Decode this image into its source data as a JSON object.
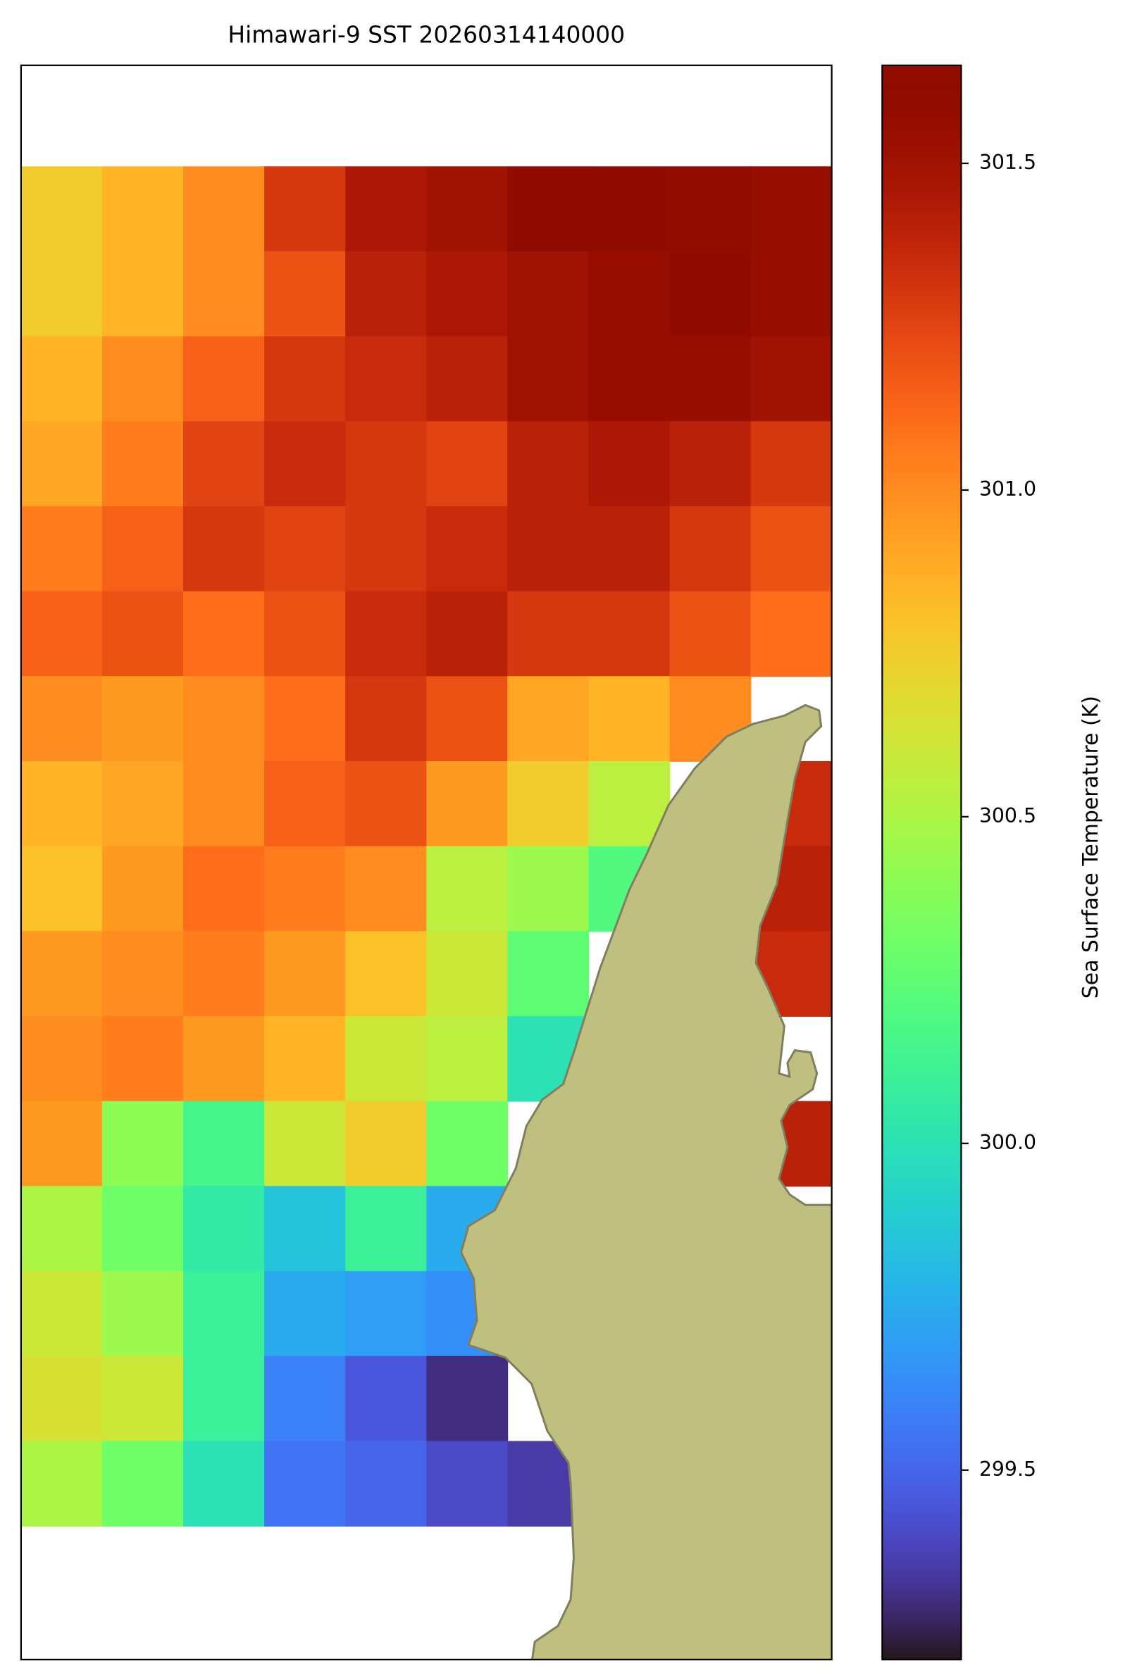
{
  "chart_data": {
    "type": "heatmap",
    "title": "Himawari-9 SST 20260314140000",
    "colorbar_label": "Sea Surface Temperature (K)",
    "colormap": "turbo",
    "clim": [
      299.21,
      301.65
    ],
    "cticks": [
      299.5,
      {
        "value": 300.0,
        "label": "300.0"
      },
      300.5,
      {
        "value": 301.0,
        "label": "301.0"
      },
      301.5
    ],
    "values": [
      [
        300.75,
        300.85,
        301.0,
        301.3,
        301.45,
        301.5,
        301.6,
        301.62,
        301.58,
        301.55
      ],
      [
        300.75,
        300.85,
        301.0,
        301.2,
        301.4,
        301.45,
        301.5,
        301.55,
        301.6,
        301.55
      ],
      [
        300.85,
        301.0,
        301.15,
        301.3,
        301.35,
        301.4,
        301.5,
        301.55,
        301.55,
        301.5
      ],
      [
        300.9,
        301.05,
        301.25,
        301.35,
        301.3,
        301.25,
        301.4,
        301.45,
        301.4,
        301.3
      ],
      [
        301.05,
        301.15,
        301.3,
        301.25,
        301.3,
        301.35,
        301.4,
        301.4,
        301.3,
        301.2
      ],
      [
        301.15,
        301.2,
        301.1,
        301.2,
        301.35,
        301.4,
        301.3,
        301.3,
        301.2,
        301.1
      ],
      [
        301.0,
        300.95,
        301.0,
        301.1,
        301.3,
        301.2,
        300.9,
        300.85,
        301.0,
        null
      ],
      [
        300.85,
        300.9,
        301.0,
        301.15,
        301.2,
        300.95,
        300.75,
        300.55,
        null,
        301.35
      ],
      [
        300.8,
        300.95,
        301.1,
        301.05,
        301.0,
        300.55,
        300.45,
        300.2,
        null,
        301.4
      ],
      [
        300.95,
        301.0,
        301.05,
        300.95,
        300.8,
        300.6,
        300.25,
        null,
        null,
        301.35
      ],
      [
        301.0,
        301.05,
        300.95,
        300.85,
        300.6,
        300.55,
        300.0,
        null,
        null,
        null
      ],
      [
        300.95,
        300.4,
        300.15,
        300.6,
        300.75,
        300.3,
        null,
        null,
        null,
        301.4
      ],
      [
        300.5,
        300.3,
        300.05,
        299.85,
        300.1,
        299.75,
        null,
        null,
        null,
        null
      ],
      [
        300.6,
        300.45,
        300.1,
        299.75,
        299.7,
        299.65,
        null,
        null,
        null,
        null
      ],
      [
        300.65,
        300.6,
        300.1,
        299.6,
        299.45,
        299.3,
        null,
        null,
        null,
        null
      ],
      [
        300.5,
        300.3,
        300.0,
        299.55,
        299.5,
        299.4,
        299.35,
        null,
        null,
        null
      ]
    ]
  }
}
